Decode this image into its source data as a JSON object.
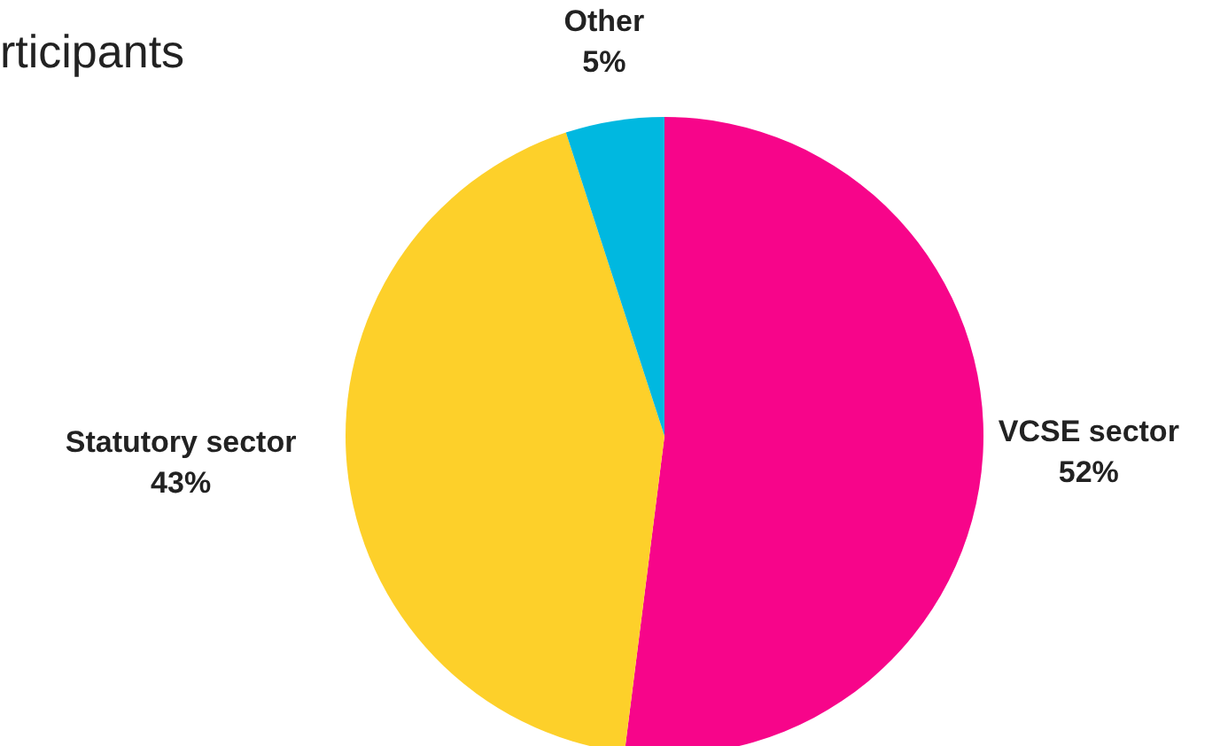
{
  "chart_data": {
    "type": "pie",
    "title": "rticipants",
    "categories": [
      "VCSE sector",
      "Statutory sector",
      "Other"
    ],
    "values": [
      52,
      43,
      5
    ],
    "colors": [
      "#f7058a",
      "#fdd02a",
      "#00b8e0"
    ],
    "value_labels": [
      "52%",
      "43%",
      "5%"
    ],
    "legend": false
  }
}
